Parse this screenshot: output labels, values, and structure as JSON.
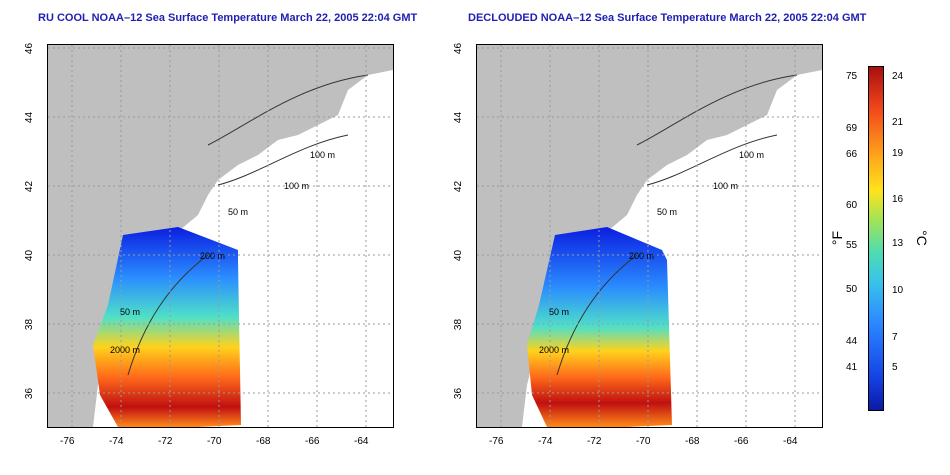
{
  "titles": {
    "left": "RU COOL NOAA–12 Sea Surface Temperature March 22, 2005 22:04 GMT",
    "right": "DECLOUDED NOAA–12 Sea Surface Temperature March 22, 2005 22:04 GMT"
  },
  "axes": {
    "lat_ticks": [
      "46",
      "44",
      "42",
      "40",
      "38",
      "36"
    ],
    "lon_ticks": [
      "-76",
      "-74",
      "-72",
      "-70",
      "-68",
      "-66",
      "-64"
    ]
  },
  "contours": [
    "100 m",
    "100 m",
    "50 m",
    "200 m",
    "50 m",
    "2000 m"
  ],
  "colorbar": {
    "fahrenheit": [
      "75",
      "69",
      "66",
      "60",
      "55",
      "50",
      "44",
      "41"
    ],
    "celsius": [
      "24",
      "21",
      "19",
      "16",
      "13",
      "10",
      "7",
      "5"
    ],
    "unit_f": "°F",
    "unit_c": "°C"
  },
  "colors": {
    "land": "#bfbfbf",
    "title": "#1f1fb3",
    "grid": "#9a9a9a"
  }
}
